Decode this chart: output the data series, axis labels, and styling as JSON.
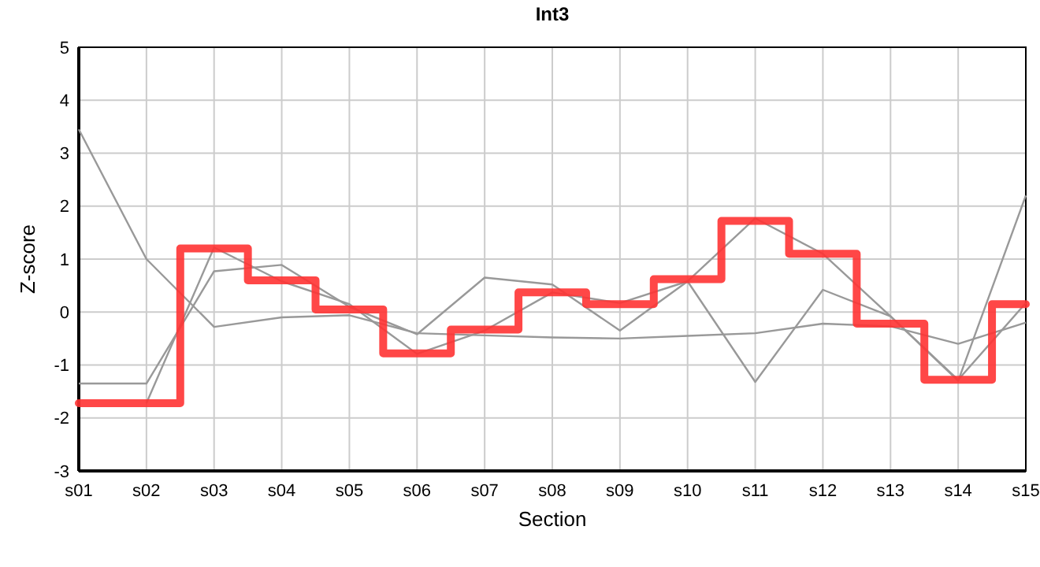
{
  "chart_data": {
    "type": "line",
    "title": "Int3",
    "xlabel": "Section",
    "ylabel": "Z-score",
    "categories": [
      "s01",
      "s02",
      "s03",
      "s04",
      "s05",
      "s06",
      "s07",
      "s08",
      "s09",
      "s10",
      "s11",
      "s12",
      "s13",
      "s14",
      "s15"
    ],
    "series": [
      {
        "color": "#999999",
        "values": [
          3.45,
          1.0,
          -0.28,
          -0.1,
          -0.06,
          -0.4,
          -0.44,
          -0.48,
          -0.5,
          -0.45,
          -0.4,
          -0.22,
          -0.27,
          -0.6,
          -0.2
        ]
      },
      {
        "color": "#999999",
        "values": [
          -1.35,
          -1.35,
          0.77,
          0.89,
          0.1,
          -0.42,
          0.65,
          0.52,
          -0.35,
          0.58,
          -1.32,
          0.42,
          -0.08,
          -1.28,
          0.17
        ]
      },
      {
        "color": "#999999",
        "values": [
          null,
          -1.72,
          1.22,
          0.58,
          0.15,
          -0.79,
          -0.35,
          0.37,
          0.17,
          0.58,
          1.77,
          1.1,
          -0.08,
          -1.3,
          2.2
        ]
      },
      {
        "type": "step",
        "color": "#ff3333",
        "values": [
          -1.72,
          -1.72,
          1.2,
          0.6,
          0.05,
          -0.78,
          -0.33,
          0.37,
          0.15,
          0.62,
          1.72,
          1.1,
          -0.22,
          -1.28,
          0.15
        ]
      }
    ],
    "ylim": [
      -3,
      5
    ],
    "yticks": [
      -3,
      -2,
      -1,
      0,
      1,
      2,
      3,
      4,
      5
    ],
    "grid": true
  }
}
